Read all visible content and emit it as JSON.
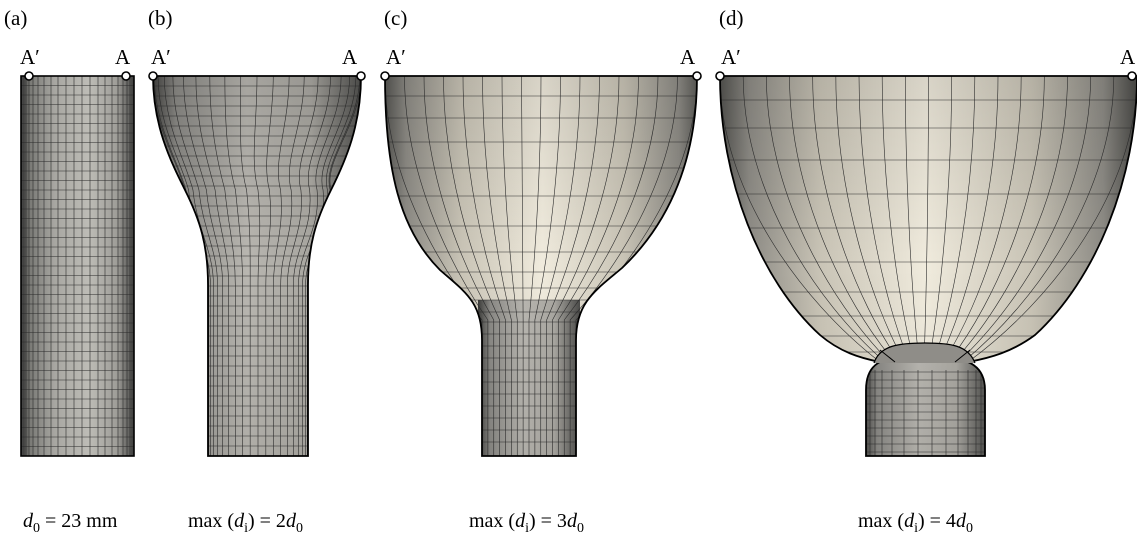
{
  "panels": [
    {
      "id": "a",
      "label": "(a)",
      "left_point": "A′",
      "right_point": "A",
      "caption": {
        "var": "d",
        "sub": "0",
        "rest": " = 23 mm"
      }
    },
    {
      "id": "b",
      "label": "(b)",
      "left_point": "A′",
      "right_point": "A",
      "caption": {
        "prefix": "max (",
        "var": "d",
        "sub": "i",
        "mid": ") = 2",
        "var2": "d",
        "sub2": "0"
      }
    },
    {
      "id": "c",
      "label": "(c)",
      "left_point": "A′",
      "right_point": "A",
      "caption": {
        "prefix": "max (",
        "var": "d",
        "sub": "i",
        "mid": ") = 3",
        "var2": "d",
        "sub2": "0"
      }
    },
    {
      "id": "d",
      "label": "(d)",
      "left_point": "A′",
      "right_point": "A",
      "caption": {
        "prefix": "max (",
        "var": "d",
        "sub": "i",
        "mid": ") = 4",
        "var2": "d",
        "sub2": "0"
      }
    }
  ],
  "colors": {
    "mesh_line": "#2a2a2a",
    "outline": "#000000",
    "face_light": "#ece6d8",
    "face_dark": "#6b6b66"
  }
}
